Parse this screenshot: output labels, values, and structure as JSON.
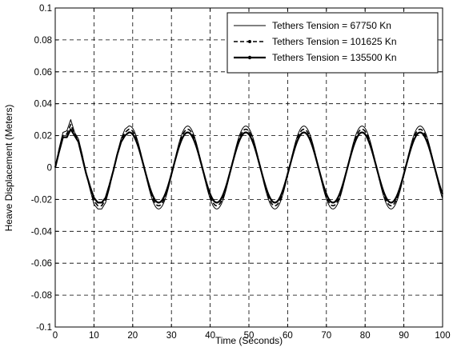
{
  "chart_data": {
    "type": "line",
    "title": "",
    "xlabel": "Time (Seconds)",
    "ylabel": "Heave Displacement (Meters)",
    "xlim": [
      0,
      100
    ],
    "ylim": [
      -0.1,
      0.1
    ],
    "grid": true,
    "legend_position": "top-right",
    "x_ticks": [
      "0",
      "10",
      "20",
      "30",
      "40",
      "50",
      "60",
      "70",
      "80",
      "90",
      "100"
    ],
    "y_ticks": [
      "0.1",
      "0.08",
      "0.06",
      "0.04",
      "0.02",
      "0",
      "-0.02",
      "-0.04",
      "-0.06",
      "-0.08",
      "-0.1"
    ],
    "period_s": 15,
    "series": [
      {
        "name": "Tethers Tension = 67750 Kn",
        "style": "thin-solid",
        "color": "#000000",
        "amplitude": 0.026,
        "points": [
          [
            0,
            0
          ],
          [
            1,
            0.012
          ],
          [
            2,
            0.022
          ],
          [
            3,
            0.023
          ],
          [
            4,
            0.03
          ],
          [
            5,
            0.022
          ],
          [
            6,
            0.018
          ],
          [
            7,
            0.008
          ],
          [
            8,
            -0.004
          ],
          [
            9,
            -0.014
          ],
          [
            10,
            -0.023
          ],
          [
            11,
            -0.026
          ],
          [
            12,
            -0.026
          ],
          [
            13,
            -0.022
          ],
          [
            14,
            -0.013
          ],
          [
            15,
            -0.002
          ],
          [
            16,
            0.009
          ],
          [
            17,
            0.018
          ],
          [
            18,
            0.024
          ],
          [
            19,
            0.026
          ]
        ]
      },
      {
        "name": "Tethers Tension = 101625 Kn",
        "style": "dashed-dot",
        "color": "#000000",
        "amplitude": 0.024,
        "points": [
          [
            0,
            0
          ],
          [
            1,
            0.011
          ],
          [
            2,
            0.02
          ],
          [
            3,
            0.021
          ],
          [
            4,
            0.027
          ],
          [
            5,
            0.021
          ],
          [
            6,
            0.017
          ],
          [
            7,
            0.007
          ],
          [
            8,
            -0.004
          ],
          [
            9,
            -0.013
          ],
          [
            10,
            -0.021
          ],
          [
            11,
            -0.024
          ],
          [
            12,
            -0.024
          ],
          [
            13,
            -0.02
          ],
          [
            14,
            -0.012
          ],
          [
            15,
            -0.002
          ],
          [
            16,
            0.008
          ],
          [
            17,
            0.017
          ],
          [
            18,
            0.022
          ],
          [
            19,
            0.024
          ]
        ]
      },
      {
        "name": "Tethers Tension = 135500 Kn",
        "style": "thick-solid-dot",
        "color": "#000000",
        "amplitude": 0.022,
        "points": [
          [
            0,
            0
          ],
          [
            1,
            0.01
          ],
          [
            2,
            0.019
          ],
          [
            3,
            0.019
          ],
          [
            4,
            0.024
          ],
          [
            5,
            0.02
          ],
          [
            6,
            0.016
          ],
          [
            7,
            0.006
          ],
          [
            8,
            -0.004
          ],
          [
            9,
            -0.012
          ],
          [
            10,
            -0.019
          ],
          [
            11,
            -0.022
          ],
          [
            12,
            -0.022
          ],
          [
            13,
            -0.019
          ],
          [
            14,
            -0.011
          ],
          [
            15,
            -0.002
          ],
          [
            16,
            0.008
          ],
          [
            17,
            0.016
          ],
          [
            18,
            0.02
          ],
          [
            19,
            0.022
          ]
        ]
      }
    ]
  }
}
